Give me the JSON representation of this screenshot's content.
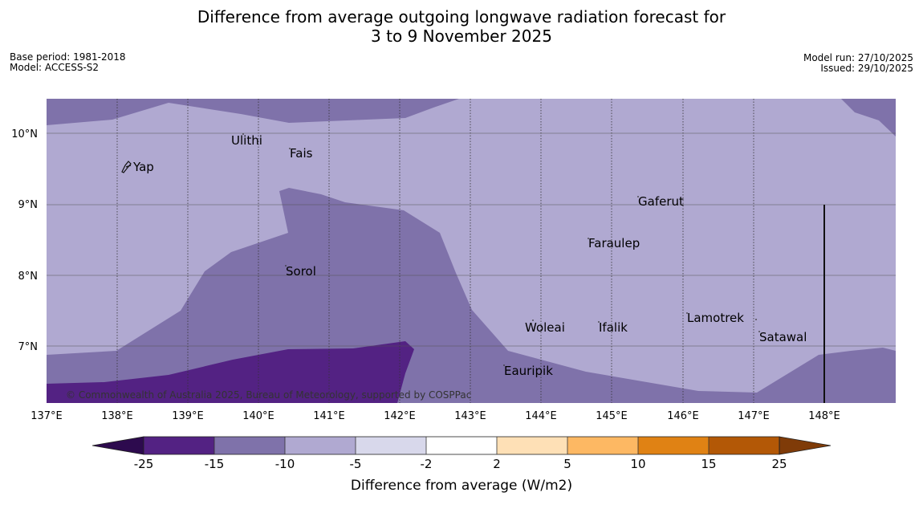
{
  "title": {
    "line1": "Difference from average outgoing longwave radiation forecast for",
    "line2": "3 to 9 November 2025"
  },
  "meta": {
    "base_period": "Base period: 1981-2018",
    "model": "Model: ACCESS-S2",
    "model_run": "Model run: 27/10/2025",
    "issued": "Issued: 29/10/2025"
  },
  "colors": {
    "class_minus15_to_minus10": "#7f72aa",
    "class_minus10_to_minus5": "#b0a9d1",
    "class_minus25_to_minus15": "#532283"
  },
  "map": {
    "x_ticks": [
      "137°E",
      "138°E",
      "139°E",
      "140°E",
      "141°E",
      "142°E",
      "143°E",
      "144°E",
      "145°E",
      "146°E",
      "147°E",
      "148°E"
    ],
    "y_ticks": [
      "10°N",
      "9°N",
      "8°N",
      "7°N"
    ],
    "places": [
      {
        "name": "Ulithi"
      },
      {
        "name": "Fais"
      },
      {
        "name": "Yap"
      },
      {
        "name": "Gaferut"
      },
      {
        "name": "Faraulep"
      },
      {
        "name": "Sorol"
      },
      {
        "name": "Woleai"
      },
      {
        "name": "Ifalik"
      },
      {
        "name": "Lamotrek"
      },
      {
        "name": "Satawal"
      },
      {
        "name": "Eauripik"
      }
    ],
    "copyright": "© Commonwealth of Australia 2025, Bureau of Meteorology, supported by COSPPac"
  },
  "colorbar": {
    "ticks": [
      "-25",
      "-15",
      "-10",
      "-5",
      "-2",
      "2",
      "5",
      "10",
      "15",
      "25"
    ],
    "colors": [
      "#2d0a4e",
      "#532283",
      "#7f72aa",
      "#b0a9d1",
      "#d8d8eb",
      "#ffffff",
      "#fee0b6",
      "#fdb863",
      "#e08214",
      "#b35806",
      "#7f3b08"
    ],
    "label": "Difference from average (W/m2)"
  }
}
